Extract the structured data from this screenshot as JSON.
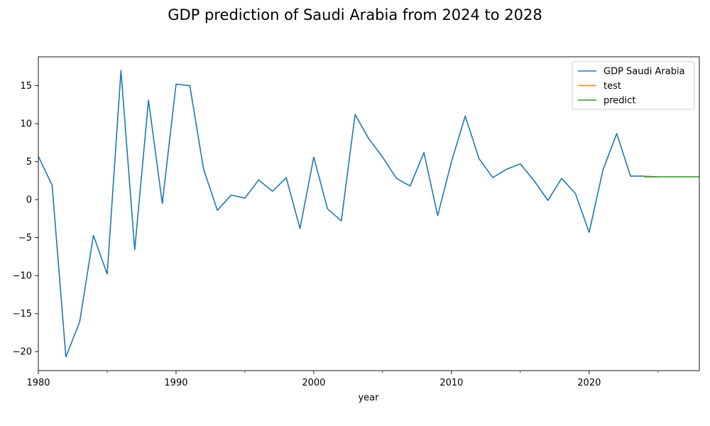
{
  "chart_data": {
    "type": "line",
    "title": "GDP prediction of Saudi Arabia from 2024 to 2028",
    "xlabel": "year",
    "ylabel": "",
    "xlim": [
      1980,
      2028
    ],
    "ylim": [
      -22.5,
      18.8
    ],
    "x_ticks": [
      1980,
      1990,
      2000,
      2010,
      2020
    ],
    "x_minor_ticks": [
      1985,
      1995,
      2005,
      2015,
      2025
    ],
    "y_ticks": [
      -20,
      -15,
      -10,
      -5,
      0,
      5,
      10,
      15
    ],
    "grid": false,
    "legend_position": "top-right",
    "series": [
      {
        "name": "GDP Saudi Arabia",
        "color": "#1f77b4",
        "x": [
          1980,
          1981,
          1982,
          1983,
          1984,
          1985,
          1986,
          1987,
          1988,
          1989,
          1990,
          1991,
          1992,
          1993,
          1994,
          1995,
          1996,
          1997,
          1998,
          1999,
          2000,
          2001,
          2002,
          2003,
          2004,
          2005,
          2006,
          2007,
          2008,
          2009,
          2010,
          2011,
          2012,
          2013,
          2014,
          2015,
          2016,
          2017,
          2018,
          2019,
          2020,
          2021,
          2022,
          2023,
          2024
        ],
        "y": [
          5.7,
          1.9,
          -20.7,
          -16.1,
          -4.7,
          -9.8,
          17.0,
          -6.6,
          13.1,
          -0.5,
          15.2,
          15.0,
          4.0,
          -1.4,
          0.6,
          0.2,
          2.6,
          1.1,
          2.9,
          -3.8,
          5.6,
          -1.2,
          -2.8,
          11.2,
          8.0,
          5.6,
          2.8,
          1.8,
          6.2,
          -2.1,
          5.0,
          11.0,
          5.4,
          2.9,
          4.0,
          4.7,
          2.5,
          -0.1,
          2.8,
          0.8,
          -4.3,
          3.9,
          8.7,
          3.1,
          3.1
        ]
      },
      {
        "name": "test",
        "color": "#ff7f0e",
        "x": [
          2024,
          2025
        ],
        "y": [
          3.1,
          3.0
        ]
      },
      {
        "name": "predict",
        "color": "#2ca02c",
        "x": [
          2024,
          2025,
          2026,
          2027,
          2028
        ],
        "y": [
          3.0,
          3.0,
          3.0,
          3.0,
          3.0
        ]
      }
    ]
  }
}
